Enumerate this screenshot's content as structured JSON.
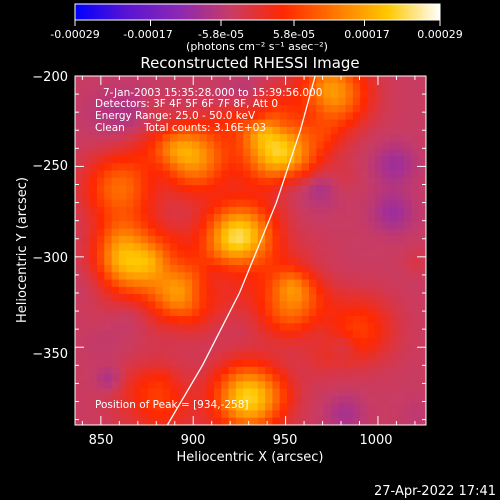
{
  "colorbar": {
    "tick_labels": [
      "-0.00029",
      "-0.00017",
      "-5.8e-05",
      "5.8e-05",
      "0.00017",
      "0.00029"
    ],
    "tick_values": [
      -0.00029,
      -0.00017,
      -5.8e-05,
      5.8e-05,
      0.00017,
      0.00029
    ],
    "range": [
      -0.00029,
      0.00029
    ],
    "unit_label": "(photons cm⁻² s⁻¹ asec⁻²)",
    "colors": [
      "#0000ff",
      "#5a14d2",
      "#8c28b4",
      "#c83c64",
      "#ff2800",
      "#ff7800",
      "#ffc800",
      "#ffffff"
    ]
  },
  "chart_data": {
    "type": "heatmap",
    "title": "Reconstructed RHESSI Image",
    "xlabel": "Heliocentric X (arcsec)",
    "ylabel": "Heliocentric Y (arcsec)",
    "xlim": [
      836,
      1026
    ],
    "ylim": [
      -393,
      -200
    ],
    "x_ticks": [
      850,
      900,
      950,
      1000
    ],
    "x_tick_labels": [
      "850",
      "900",
      "950",
      "1000"
    ],
    "y_ticks": [
      -350,
      -300,
      -250,
      -200
    ],
    "y_tick_labels": [
      "−350",
      "−300",
      "−250",
      "−200"
    ],
    "grid": false,
    "limb_curve": [
      [
        886,
        -393
      ],
      [
        905,
        -360
      ],
      [
        925,
        -320
      ],
      [
        945,
        -270
      ],
      [
        958,
        -230
      ],
      [
        966,
        -200
      ]
    ],
    "sources": [
      {
        "x": 925,
        "y": -290,
        "value": 0.00029
      },
      {
        "x": 900,
        "y": -245,
        "value": 0.0002
      },
      {
        "x": 866,
        "y": -303,
        "value": 0.00022
      },
      {
        "x": 948,
        "y": -248,
        "value": 0.00024
      },
      {
        "x": 930,
        "y": -378,
        "value": 0.00026
      },
      {
        "x": 976,
        "y": -210,
        "value": 0.00019
      },
      {
        "x": 895,
        "y": -320,
        "value": 0.00016
      },
      {
        "x": 953,
        "y": -322,
        "value": 0.00014
      },
      {
        "x": 940,
        "y": -228,
        "value": 0.00012
      },
      {
        "x": 990,
        "y": -340,
        "value": 0.0001
      },
      {
        "x": 878,
        "y": -380,
        "value": 0.00012
      },
      {
        "x": 860,
        "y": -262,
        "value": 0.00015
      }
    ],
    "annotations": {
      "time": "7-Jan-2003 15:35:28.000 to 15:39:56.000",
      "detectors": "Detectors: 3F 4F 5F 6F 7F 8F, Att 0",
      "energy": "Energy Range: 25.0 - 50.0 keV",
      "method": "Clean",
      "counts": "Total counts: 3.16E+03",
      "peak": "Position of Peak = [934,-258]"
    }
  },
  "footer": {
    "timestamp": "27-Apr-2022 17:41"
  }
}
